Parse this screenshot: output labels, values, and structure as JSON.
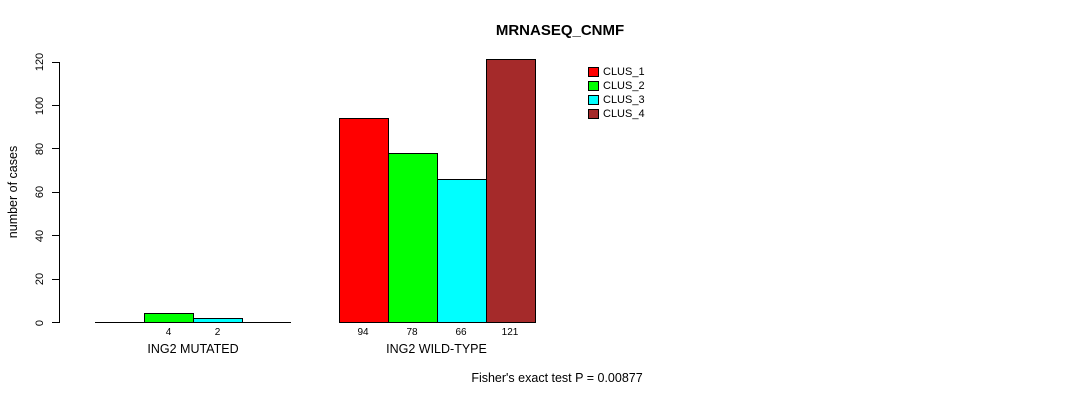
{
  "chart_data": {
    "type": "bar",
    "title": "MRNASEQ_CNMF",
    "ylabel": "number of cases",
    "xlabel": "",
    "ylim": [
      0,
      120
    ],
    "yticks": [
      0,
      20,
      40,
      60,
      80,
      100,
      120
    ],
    "grid": false,
    "legend_position": "top-right",
    "categories": [
      "ING2 MUTATED",
      "ING2 WILD-TYPE"
    ],
    "series": [
      {
        "name": "CLUS_1",
        "color": "#FF0000",
        "values": [
          0,
          94
        ]
      },
      {
        "name": "CLUS_2",
        "color": "#00FF00",
        "values": [
          4,
          78
        ]
      },
      {
        "name": "CLUS_3",
        "color": "#00FFFF",
        "values": [
          2,
          66
        ]
      },
      {
        "name": "CLUS_4",
        "color": "#A52A2A",
        "values": [
          0,
          121
        ]
      }
    ],
    "bar_value_labels_shown": [
      "4",
      "2",
      "94",
      "78",
      "66",
      "121"
    ],
    "annotation": "Fisher's exact test P = 0.00877"
  }
}
